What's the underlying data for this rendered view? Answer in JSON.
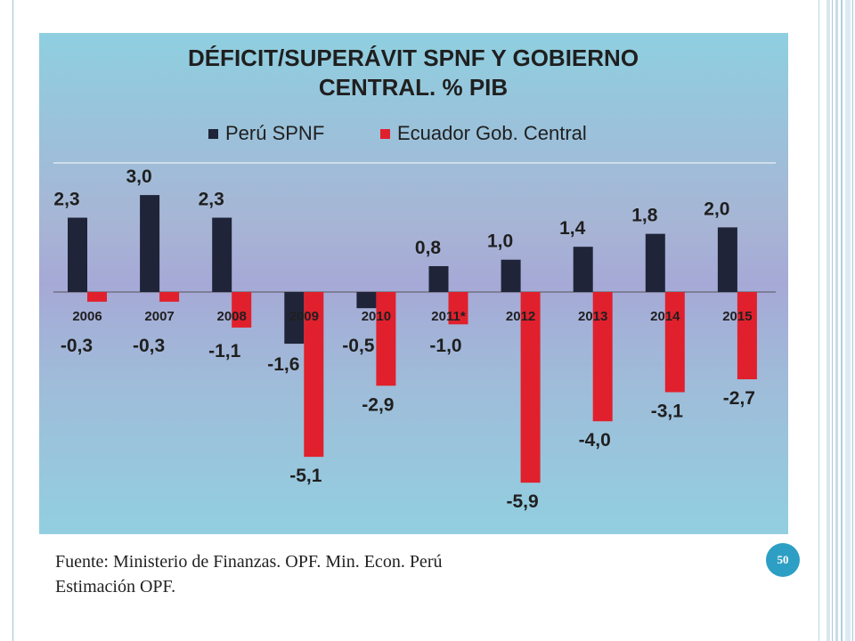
{
  "slide": {
    "source_line1": "Fuente: Ministerio de Finanzas. OPF. Min. Econ. Perú",
    "source_line2": "Estimación OPF.",
    "page_number": "50"
  },
  "chart_data": {
    "type": "bar",
    "title_line1": "DÉFICIT/SUPERÁVIT  SPNF Y GOBIERNO",
    "title_line2": "CENTRAL. % PIB",
    "categories": [
      "2006",
      "2007",
      "2008",
      "2009",
      "2010",
      "2011*",
      "2012",
      "2013",
      "2014",
      "2015"
    ],
    "series": [
      {
        "name": "Perú SPNF",
        "color": "#1f2438",
        "values": [
          2.3,
          3.0,
          2.3,
          -1.6,
          -0.5,
          0.8,
          1.0,
          1.4,
          1.8,
          2.0
        ],
        "labels": [
          "2,3",
          "3,0",
          "2,3",
          "-1,6",
          "-0,5",
          "0,8",
          "1,0",
          "1,4",
          "1,8",
          "2,0"
        ]
      },
      {
        "name": "Ecuador Gob. Central",
        "color": "#e0202c",
        "values": [
          -0.3,
          -0.3,
          -1.1,
          -5.1,
          -2.9,
          -1.0,
          -5.9,
          -4.0,
          -3.1,
          -2.7
        ],
        "labels": [
          "-0,3",
          "-0,3",
          "-1,1",
          "-5,1",
          "-2,9",
          "-1,0",
          "-5,9",
          "-4,0",
          "-3,1",
          "-2,7"
        ]
      }
    ],
    "legend_position": "top",
    "grid": false
  }
}
